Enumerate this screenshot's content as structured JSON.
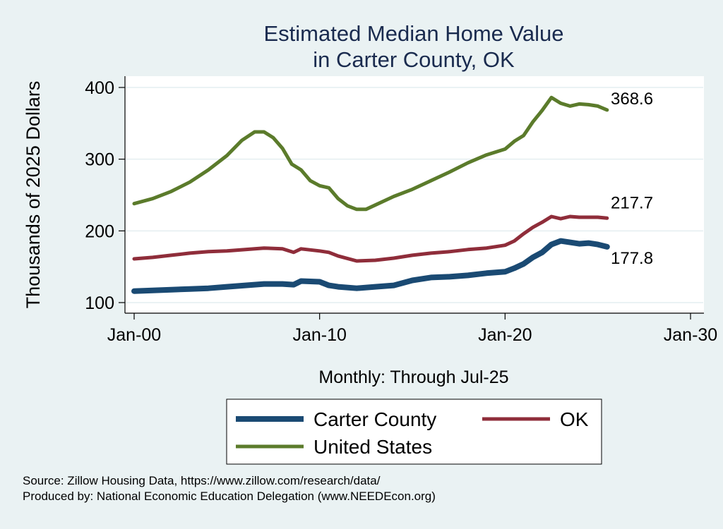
{
  "chart_data": {
    "type": "line",
    "title": [
      "Estimated Median Home Value",
      "in Carter County, OK"
    ],
    "ylabel": "Thousands of 2025 Dollars",
    "xlabel": "Monthly: Through Jul-25",
    "x_ticks": [
      "Jan-00",
      "Jan-10",
      "Jan-20",
      "Jan-30"
    ],
    "x_range": [
      2000,
      2030
    ],
    "y_ticks": [
      100,
      200,
      300,
      400
    ],
    "y_range": [
      95,
      415
    ],
    "grid": true,
    "legend_position": "bottom",
    "series": [
      {
        "name": "Carter County",
        "color": "#1a4a73",
        "end_label": "177.8",
        "points": [
          [
            2000.0,
            116
          ],
          [
            2001.0,
            117
          ],
          [
            2002.0,
            118
          ],
          [
            2003.0,
            119
          ],
          [
            2004.0,
            120
          ],
          [
            2005.0,
            122
          ],
          [
            2006.0,
            124
          ],
          [
            2007.0,
            126
          ],
          [
            2008.0,
            126
          ],
          [
            2008.6,
            125
          ],
          [
            2009.0,
            130
          ],
          [
            2010.0,
            129
          ],
          [
            2010.5,
            124
          ],
          [
            2011.0,
            122
          ],
          [
            2012.0,
            120
          ],
          [
            2013.0,
            122
          ],
          [
            2013.5,
            123
          ],
          [
            2014.0,
            124
          ],
          [
            2015.0,
            131
          ],
          [
            2016.0,
            135
          ],
          [
            2017.0,
            136
          ],
          [
            2018.0,
            138
          ],
          [
            2019.0,
            141
          ],
          [
            2020.0,
            143
          ],
          [
            2020.5,
            148
          ],
          [
            2021.0,
            154
          ],
          [
            2021.5,
            163
          ],
          [
            2022.0,
            170
          ],
          [
            2022.5,
            181
          ],
          [
            2023.0,
            186
          ],
          [
            2023.5,
            184
          ],
          [
            2024.0,
            182
          ],
          [
            2024.5,
            183
          ],
          [
            2025.0,
            181
          ],
          [
            2025.5,
            177.8
          ]
        ]
      },
      {
        "name": "OK",
        "color": "#8f2d3a",
        "end_label": "217.7",
        "points": [
          [
            2000.0,
            161
          ],
          [
            2001.0,
            163
          ],
          [
            2002.0,
            166
          ],
          [
            2003.0,
            169
          ],
          [
            2004.0,
            171
          ],
          [
            2005.0,
            172
          ],
          [
            2006.0,
            174
          ],
          [
            2007.0,
            176
          ],
          [
            2008.0,
            175
          ],
          [
            2008.6,
            170
          ],
          [
            2009.0,
            175
          ],
          [
            2010.0,
            172
          ],
          [
            2010.5,
            170
          ],
          [
            2011.0,
            165
          ],
          [
            2012.0,
            158
          ],
          [
            2013.0,
            159
          ],
          [
            2014.0,
            162
          ],
          [
            2015.0,
            166
          ],
          [
            2016.0,
            169
          ],
          [
            2017.0,
            171
          ],
          [
            2018.0,
            174
          ],
          [
            2019.0,
            176
          ],
          [
            2020.0,
            180
          ],
          [
            2020.5,
            186
          ],
          [
            2021.0,
            196
          ],
          [
            2021.5,
            205
          ],
          [
            2022.0,
            212
          ],
          [
            2022.5,
            220
          ],
          [
            2023.0,
            217
          ],
          [
            2023.5,
            220
          ],
          [
            2024.0,
            219
          ],
          [
            2025.0,
            219
          ],
          [
            2025.5,
            217.7
          ]
        ]
      },
      {
        "name": "United States",
        "color": "#5b7b2b",
        "end_label": "368.6",
        "points": [
          [
            2000.0,
            238
          ],
          [
            2001.0,
            245
          ],
          [
            2002.0,
            255
          ],
          [
            2003.0,
            268
          ],
          [
            2004.0,
            285
          ],
          [
            2005.0,
            305
          ],
          [
            2005.8,
            326
          ],
          [
            2006.5,
            338
          ],
          [
            2007.0,
            338
          ],
          [
            2007.5,
            330
          ],
          [
            2008.0,
            315
          ],
          [
            2008.5,
            293
          ],
          [
            2009.0,
            285
          ],
          [
            2009.5,
            270
          ],
          [
            2010.0,
            263
          ],
          [
            2010.5,
            260
          ],
          [
            2011.0,
            245
          ],
          [
            2011.5,
            235
          ],
          [
            2012.0,
            230
          ],
          [
            2012.5,
            230
          ],
          [
            2013.0,
            236
          ],
          [
            2014.0,
            248
          ],
          [
            2015.0,
            258
          ],
          [
            2016.0,
            270
          ],
          [
            2017.0,
            282
          ],
          [
            2018.0,
            295
          ],
          [
            2019.0,
            306
          ],
          [
            2020.0,
            314
          ],
          [
            2020.5,
            325
          ],
          [
            2021.0,
            333
          ],
          [
            2021.5,
            352
          ],
          [
            2022.0,
            368
          ],
          [
            2022.5,
            386
          ],
          [
            2023.0,
            378
          ],
          [
            2023.5,
            374
          ],
          [
            2024.0,
            377
          ],
          [
            2024.5,
            376
          ],
          [
            2025.0,
            374
          ],
          [
            2025.5,
            368.6
          ]
        ]
      }
    ]
  },
  "legend": {
    "items": [
      {
        "label": "Carter County",
        "color": "#1a4a73"
      },
      {
        "label": "OK",
        "color": "#8f2d3a"
      },
      {
        "label": "United States",
        "color": "#5b7b2b"
      }
    ]
  },
  "source": {
    "line1": "Source: Zillow Housing Data, https://www.zillow.com/research/data/",
    "line2": "Produced by: National Economic Education Delegation (www.NEEDEcon.org)"
  }
}
